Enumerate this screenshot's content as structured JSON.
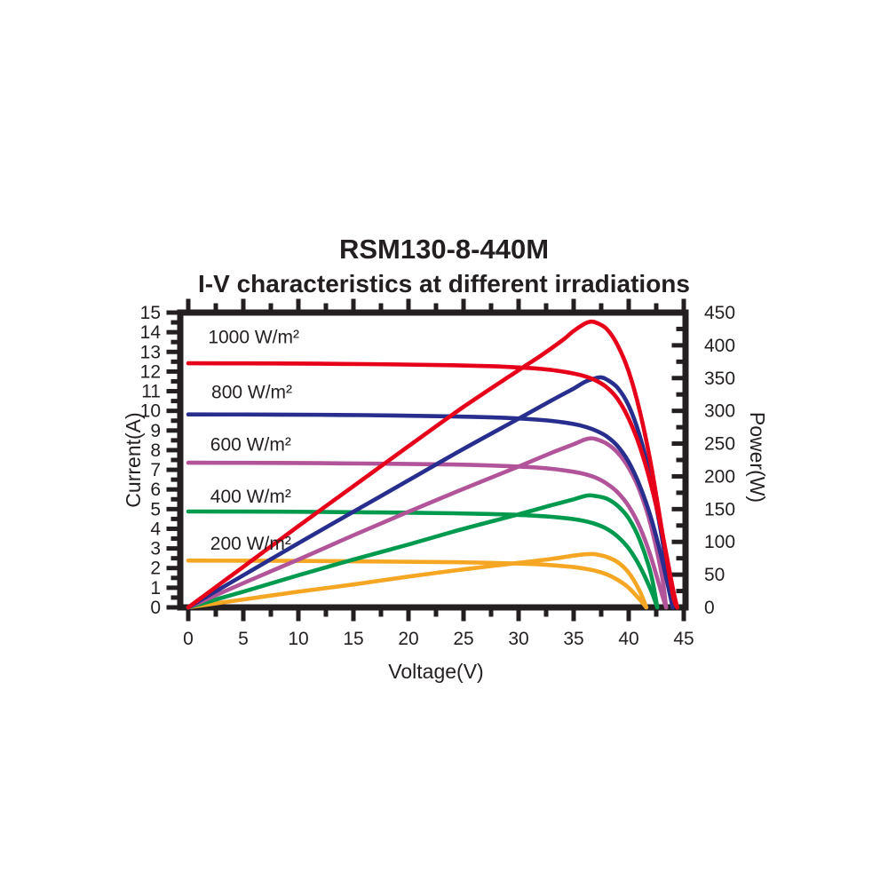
{
  "header": {
    "title": "RSM130-8-440M",
    "subtitle": "I-V characteristics at different irradiations"
  },
  "colors": {
    "axis": "#231f20",
    "red": "#e60019",
    "blue": "#272e8d",
    "purple": "#b2549a",
    "green": "#009a4e",
    "orange": "#f5a623"
  },
  "chart_data": {
    "type": "line",
    "title": "RSM130-8-440M",
    "subtitle": "I-V characteristics at different irradiations",
    "xlabel": "Voltage(V)",
    "ylabel_left": "Current(A)",
    "ylabel_right": "Power(W)",
    "x_range": [
      0,
      45
    ],
    "x_major_step": 5,
    "x_minor_step": 2.5,
    "x_ticks": [
      0,
      5,
      10,
      15,
      20,
      25,
      30,
      35,
      40,
      45
    ],
    "y_left_range": [
      0,
      15
    ],
    "y_left_major_step": 1,
    "y_left_minor_step": 0.5,
    "y_left_ticks": [
      0,
      1,
      2,
      3,
      4,
      5,
      6,
      7,
      8,
      9,
      10,
      11,
      12,
      13,
      14,
      15
    ],
    "y_right_range": [
      0,
      450
    ],
    "y_right_major_step": 50,
    "y_right_minor_step": 25,
    "y_right_ticks": [
      0,
      50,
      100,
      150,
      200,
      250,
      300,
      350,
      400,
      450
    ],
    "grid": false,
    "legend_position": "inside-left-annotations",
    "series": [
      {
        "id": "200wm2",
        "name": "200 W/m²",
        "color": "#f5a623",
        "isc_a": 2.38,
        "voc_v": 41.6,
        "pmax_w": 81.5,
        "vmp_v": 36.5,
        "label": {
          "text": "200 W/m²",
          "x": 2.0,
          "y": 3.25
        },
        "iv": [
          [
            0,
            2.38
          ],
          [
            8,
            2.37
          ],
          [
            16,
            2.34
          ],
          [
            24,
            2.3
          ],
          [
            28,
            2.26
          ],
          [
            31,
            2.21
          ],
          [
            33,
            2.15
          ],
          [
            35,
            2.05
          ],
          [
            36,
            1.97
          ],
          [
            37,
            1.86
          ],
          [
            38,
            1.68
          ],
          [
            39,
            1.4
          ],
          [
            40,
            1.0
          ],
          [
            41,
            0.4
          ],
          [
            41.6,
            0
          ]
        ],
        "pv": [
          [
            0,
            0
          ],
          [
            5,
            12
          ],
          [
            10,
            24
          ],
          [
            15,
            35
          ],
          [
            20,
            47
          ],
          [
            25,
            58
          ],
          [
            30,
            68
          ],
          [
            33,
            74
          ],
          [
            35,
            79
          ],
          [
            36,
            81
          ],
          [
            36.5,
            81.5
          ],
          [
            37,
            81
          ],
          [
            38,
            77
          ],
          [
            39,
            69
          ],
          [
            40,
            53
          ],
          [
            41,
            25
          ],
          [
            41.6,
            0
          ]
        ]
      },
      {
        "id": "400wm2",
        "name": "400 W/m²",
        "color": "#009a4e",
        "isc_a": 4.88,
        "voc_v": 42.6,
        "pmax_w": 171,
        "vmp_v": 36.5,
        "label": {
          "text": "400 W/m²",
          "x": 2.0,
          "y": 5.65
        },
        "iv": [
          [
            0,
            4.88
          ],
          [
            8,
            4.87
          ],
          [
            16,
            4.84
          ],
          [
            24,
            4.79
          ],
          [
            28,
            4.74
          ],
          [
            31,
            4.68
          ],
          [
            33,
            4.61
          ],
          [
            35,
            4.49
          ],
          [
            36,
            4.39
          ],
          [
            37,
            4.24
          ],
          [
            38,
            4.0
          ],
          [
            39,
            3.6
          ],
          [
            40,
            3.0
          ],
          [
            41,
            2.1
          ],
          [
            42,
            0.9
          ],
          [
            42.6,
            0
          ]
        ],
        "pv": [
          [
            0,
            0
          ],
          [
            5,
            24
          ],
          [
            10,
            49
          ],
          [
            15,
            73
          ],
          [
            20,
            96
          ],
          [
            25,
            120
          ],
          [
            30,
            142
          ],
          [
            33,
            156
          ],
          [
            35,
            165
          ],
          [
            36,
            170
          ],
          [
            36.5,
            171
          ],
          [
            37,
            170
          ],
          [
            38,
            166
          ],
          [
            39,
            155
          ],
          [
            40,
            136
          ],
          [
            41,
            103
          ],
          [
            42,
            52
          ],
          [
            42.6,
            0
          ]
        ]
      },
      {
        "id": "600wm2",
        "name": "600 W/m²",
        "color": "#b2549a",
        "isc_a": 7.36,
        "voc_v": 43.4,
        "pmax_w": 258,
        "vmp_v": 36.5,
        "label": {
          "text": "600 W/m²",
          "x": 2.0,
          "y": 8.3
        },
        "iv": [
          [
            0,
            7.36
          ],
          [
            8,
            7.35
          ],
          [
            16,
            7.32
          ],
          [
            24,
            7.27
          ],
          [
            28,
            7.21
          ],
          [
            31,
            7.14
          ],
          [
            33,
            7.05
          ],
          [
            35,
            6.9
          ],
          [
            36,
            6.78
          ],
          [
            37,
            6.6
          ],
          [
            38,
            6.3
          ],
          [
            39,
            5.85
          ],
          [
            40,
            5.15
          ],
          [
            41,
            4.1
          ],
          [
            42,
            2.6
          ],
          [
            43,
            0.7
          ],
          [
            43.4,
            0
          ]
        ],
        "pv": [
          [
            0,
            0
          ],
          [
            5,
            37
          ],
          [
            10,
            73
          ],
          [
            15,
            110
          ],
          [
            20,
            146
          ],
          [
            25,
            181
          ],
          [
            30,
            215
          ],
          [
            33,
            236
          ],
          [
            35,
            249
          ],
          [
            36,
            256
          ],
          [
            36.5,
            258
          ],
          [
            37,
            257
          ],
          [
            38,
            250
          ],
          [
            39,
            236
          ],
          [
            40,
            213
          ],
          [
            41,
            178
          ],
          [
            42,
            126
          ],
          [
            43,
            50
          ],
          [
            43.4,
            0
          ]
        ]
      },
      {
        "id": "800wm2",
        "name": "800 W/m²",
        "color": "#272e8d",
        "isc_a": 9.82,
        "voc_v": 44.0,
        "pmax_w": 351,
        "vmp_v": 37.5,
        "label": {
          "text": "800 W/m²",
          "x": 2.1,
          "y": 10.95
        },
        "iv": [
          [
            0,
            9.82
          ],
          [
            8,
            9.81
          ],
          [
            16,
            9.78
          ],
          [
            24,
            9.72
          ],
          [
            28,
            9.66
          ],
          [
            31,
            9.58
          ],
          [
            33,
            9.49
          ],
          [
            35,
            9.33
          ],
          [
            36,
            9.2
          ],
          [
            37,
            9.0
          ],
          [
            38,
            8.7
          ],
          [
            39,
            8.2
          ],
          [
            40,
            7.4
          ],
          [
            41,
            6.2
          ],
          [
            42,
            4.6
          ],
          [
            43,
            2.5
          ],
          [
            44,
            0
          ]
        ],
        "pv": [
          [
            0,
            0
          ],
          [
            5,
            49
          ],
          [
            10,
            98
          ],
          [
            15,
            146
          ],
          [
            20,
            194
          ],
          [
            25,
            242
          ],
          [
            30,
            288
          ],
          [
            33,
            316
          ],
          [
            35,
            334
          ],
          [
            36,
            344
          ],
          [
            37,
            350
          ],
          [
            37.5,
            351
          ],
          [
            38,
            348
          ],
          [
            39,
            335
          ],
          [
            40,
            308
          ],
          [
            41,
            262
          ],
          [
            42,
            196
          ],
          [
            43,
            108
          ],
          [
            44,
            0
          ]
        ]
      },
      {
        "id": "1000wm2",
        "name": "1000 W/m²",
        "color": "#e60019",
        "isc_a": 12.42,
        "voc_v": 44.4,
        "pmax_w": 436,
        "vmp_v": 36.5,
        "label": {
          "text": "1000 W/m²",
          "x": 1.8,
          "y": 13.75
        },
        "iv": [
          [
            0,
            12.42
          ],
          [
            8,
            12.41
          ],
          [
            16,
            12.38
          ],
          [
            24,
            12.32
          ],
          [
            28,
            12.26
          ],
          [
            31,
            12.18
          ],
          [
            33,
            12.08
          ],
          [
            35,
            11.9
          ],
          [
            36,
            11.76
          ],
          [
            37,
            11.55
          ],
          [
            38,
            11.2
          ],
          [
            39,
            10.6
          ],
          [
            40,
            9.6
          ],
          [
            41,
            8.2
          ],
          [
            42,
            6.3
          ],
          [
            43,
            3.9
          ],
          [
            44,
            1.0
          ],
          [
            44.4,
            0
          ]
        ],
        "pv": [
          [
            0,
            0
          ],
          [
            5,
            62
          ],
          [
            10,
            124
          ],
          [
            15,
            185
          ],
          [
            20,
            246
          ],
          [
            25,
            306
          ],
          [
            30,
            362
          ],
          [
            32,
            384
          ],
          [
            34,
            408
          ],
          [
            35,
            422
          ],
          [
            36,
            433
          ],
          [
            36.5,
            436
          ],
          [
            37,
            435
          ],
          [
            38,
            425
          ],
          [
            39,
            400
          ],
          [
            40,
            360
          ],
          [
            41,
            300
          ],
          [
            42,
            220
          ],
          [
            43,
            120
          ],
          [
            44,
            20
          ],
          [
            44.4,
            0
          ]
        ]
      }
    ]
  }
}
